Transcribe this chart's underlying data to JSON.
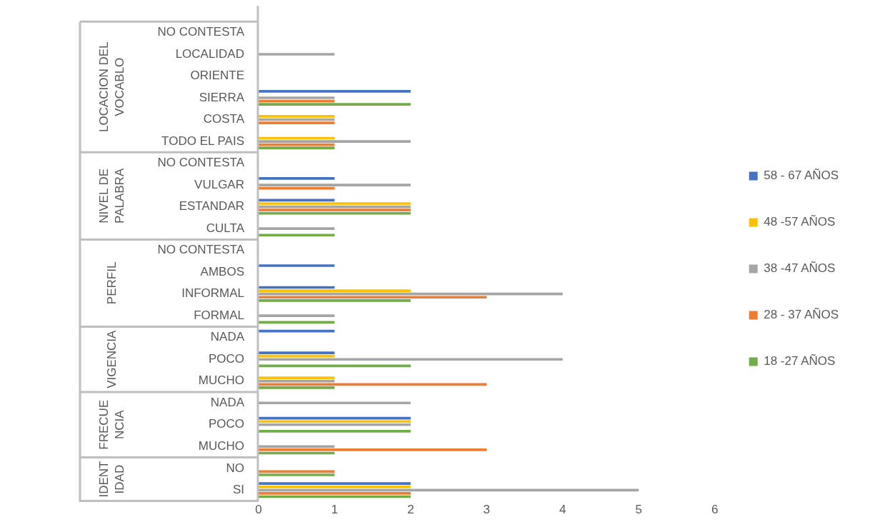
{
  "chart_data": {
    "type": "bar",
    "orientation": "horizontal",
    "categories": [
      "NO CONTESTA",
      "LOCALIDAD",
      "ORIENTE",
      "SIERRA",
      "COSTA",
      "TODO EL PAIS",
      "NO CONTESTA",
      "VULGAR",
      "ESTANDAR",
      "CULTA",
      "NO CONTESTA",
      "AMBOS",
      "INFORMAL",
      "FORMAL",
      "NADA",
      "POCO",
      "MUCHO",
      "NADA",
      "POCO",
      "MUCHO",
      "NO",
      "SI"
    ],
    "series": [
      {
        "name": "58 - 67 AÑOS",
        "color": "#4472c4",
        "values": [
          null,
          null,
          null,
          2,
          null,
          null,
          null,
          1,
          1,
          null,
          null,
          1,
          1,
          null,
          1,
          1,
          null,
          null,
          2,
          null,
          null,
          2
        ]
      },
      {
        "name": "48 -57 AÑOS",
        "color": "#ffc000",
        "values": [
          null,
          null,
          null,
          null,
          1,
          1,
          null,
          null,
          2,
          null,
          null,
          null,
          2,
          null,
          null,
          1,
          1,
          null,
          2,
          null,
          null,
          2
        ]
      },
      {
        "name": "38 -47 AÑOS",
        "color": "#a5a5a5",
        "values": [
          null,
          1,
          null,
          1,
          1,
          2,
          null,
          2,
          2,
          1,
          null,
          null,
          4,
          1,
          null,
          4,
          1,
          2,
          2,
          1,
          null,
          5
        ]
      },
      {
        "name": "28 - 37 AÑOS",
        "color": "#ed7d31",
        "values": [
          null,
          null,
          null,
          1,
          1,
          1,
          null,
          1,
          2,
          null,
          null,
          null,
          3,
          null,
          null,
          null,
          3,
          null,
          null,
          3,
          1,
          2
        ]
      },
      {
        "name": "18 -27 AÑOS",
        "color": "#70ad47",
        "values": [
          null,
          null,
          null,
          2,
          null,
          1,
          null,
          null,
          2,
          1,
          null,
          null,
          2,
          1,
          null,
          2,
          1,
          null,
          2,
          1,
          1,
          2
        ]
      }
    ],
    "xlim": [
      0,
      6
    ],
    "xticks": [
      0,
      1,
      2,
      3,
      4,
      5,
      6
    ],
    "grid": false,
    "legend": "right",
    "annotations": [
      "LOCACION DEL VOCABLO",
      "NIVEL DE PALABRA",
      "PERFIL",
      "VIGENCIA",
      "FRECUENCIA",
      "IDENTIDAD"
    ]
  }
}
